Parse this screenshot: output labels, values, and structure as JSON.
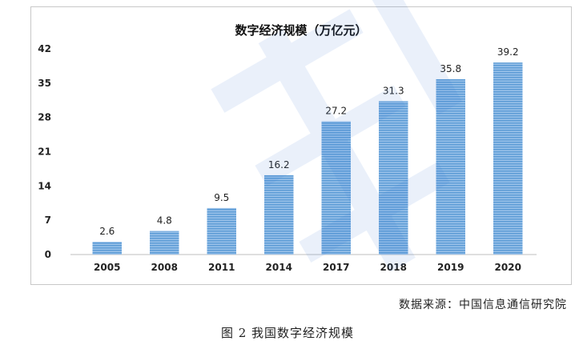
{
  "chart_data": {
    "type": "bar",
    "title": "数字经济规模（万亿元）",
    "categories": [
      "2005",
      "2008",
      "2011",
      "2014",
      "2017",
      "2018",
      "2019",
      "2020"
    ],
    "values": [
      2.6,
      4.8,
      9.5,
      16.2,
      27.2,
      31.3,
      35.8,
      39.2
    ],
    "data_labels": [
      "2.6",
      "4.8",
      "9.5",
      "16.2",
      "27.2",
      "31.3",
      "35.8",
      "39.2"
    ],
    "ylim": [
      0,
      42
    ],
    "yticks": [
      0,
      7,
      14,
      21,
      28,
      35,
      42
    ],
    "ytick_labels": [
      "0",
      "7",
      "14",
      "21",
      "28",
      "35",
      "42"
    ],
    "xlabel": "",
    "ylabel": "",
    "grid": false,
    "legend": "none",
    "bar_color": "#5b9bd5"
  },
  "source_text": "数据来源：中国信息通信研究院",
  "caption": "图 2  我国数字经济规模"
}
